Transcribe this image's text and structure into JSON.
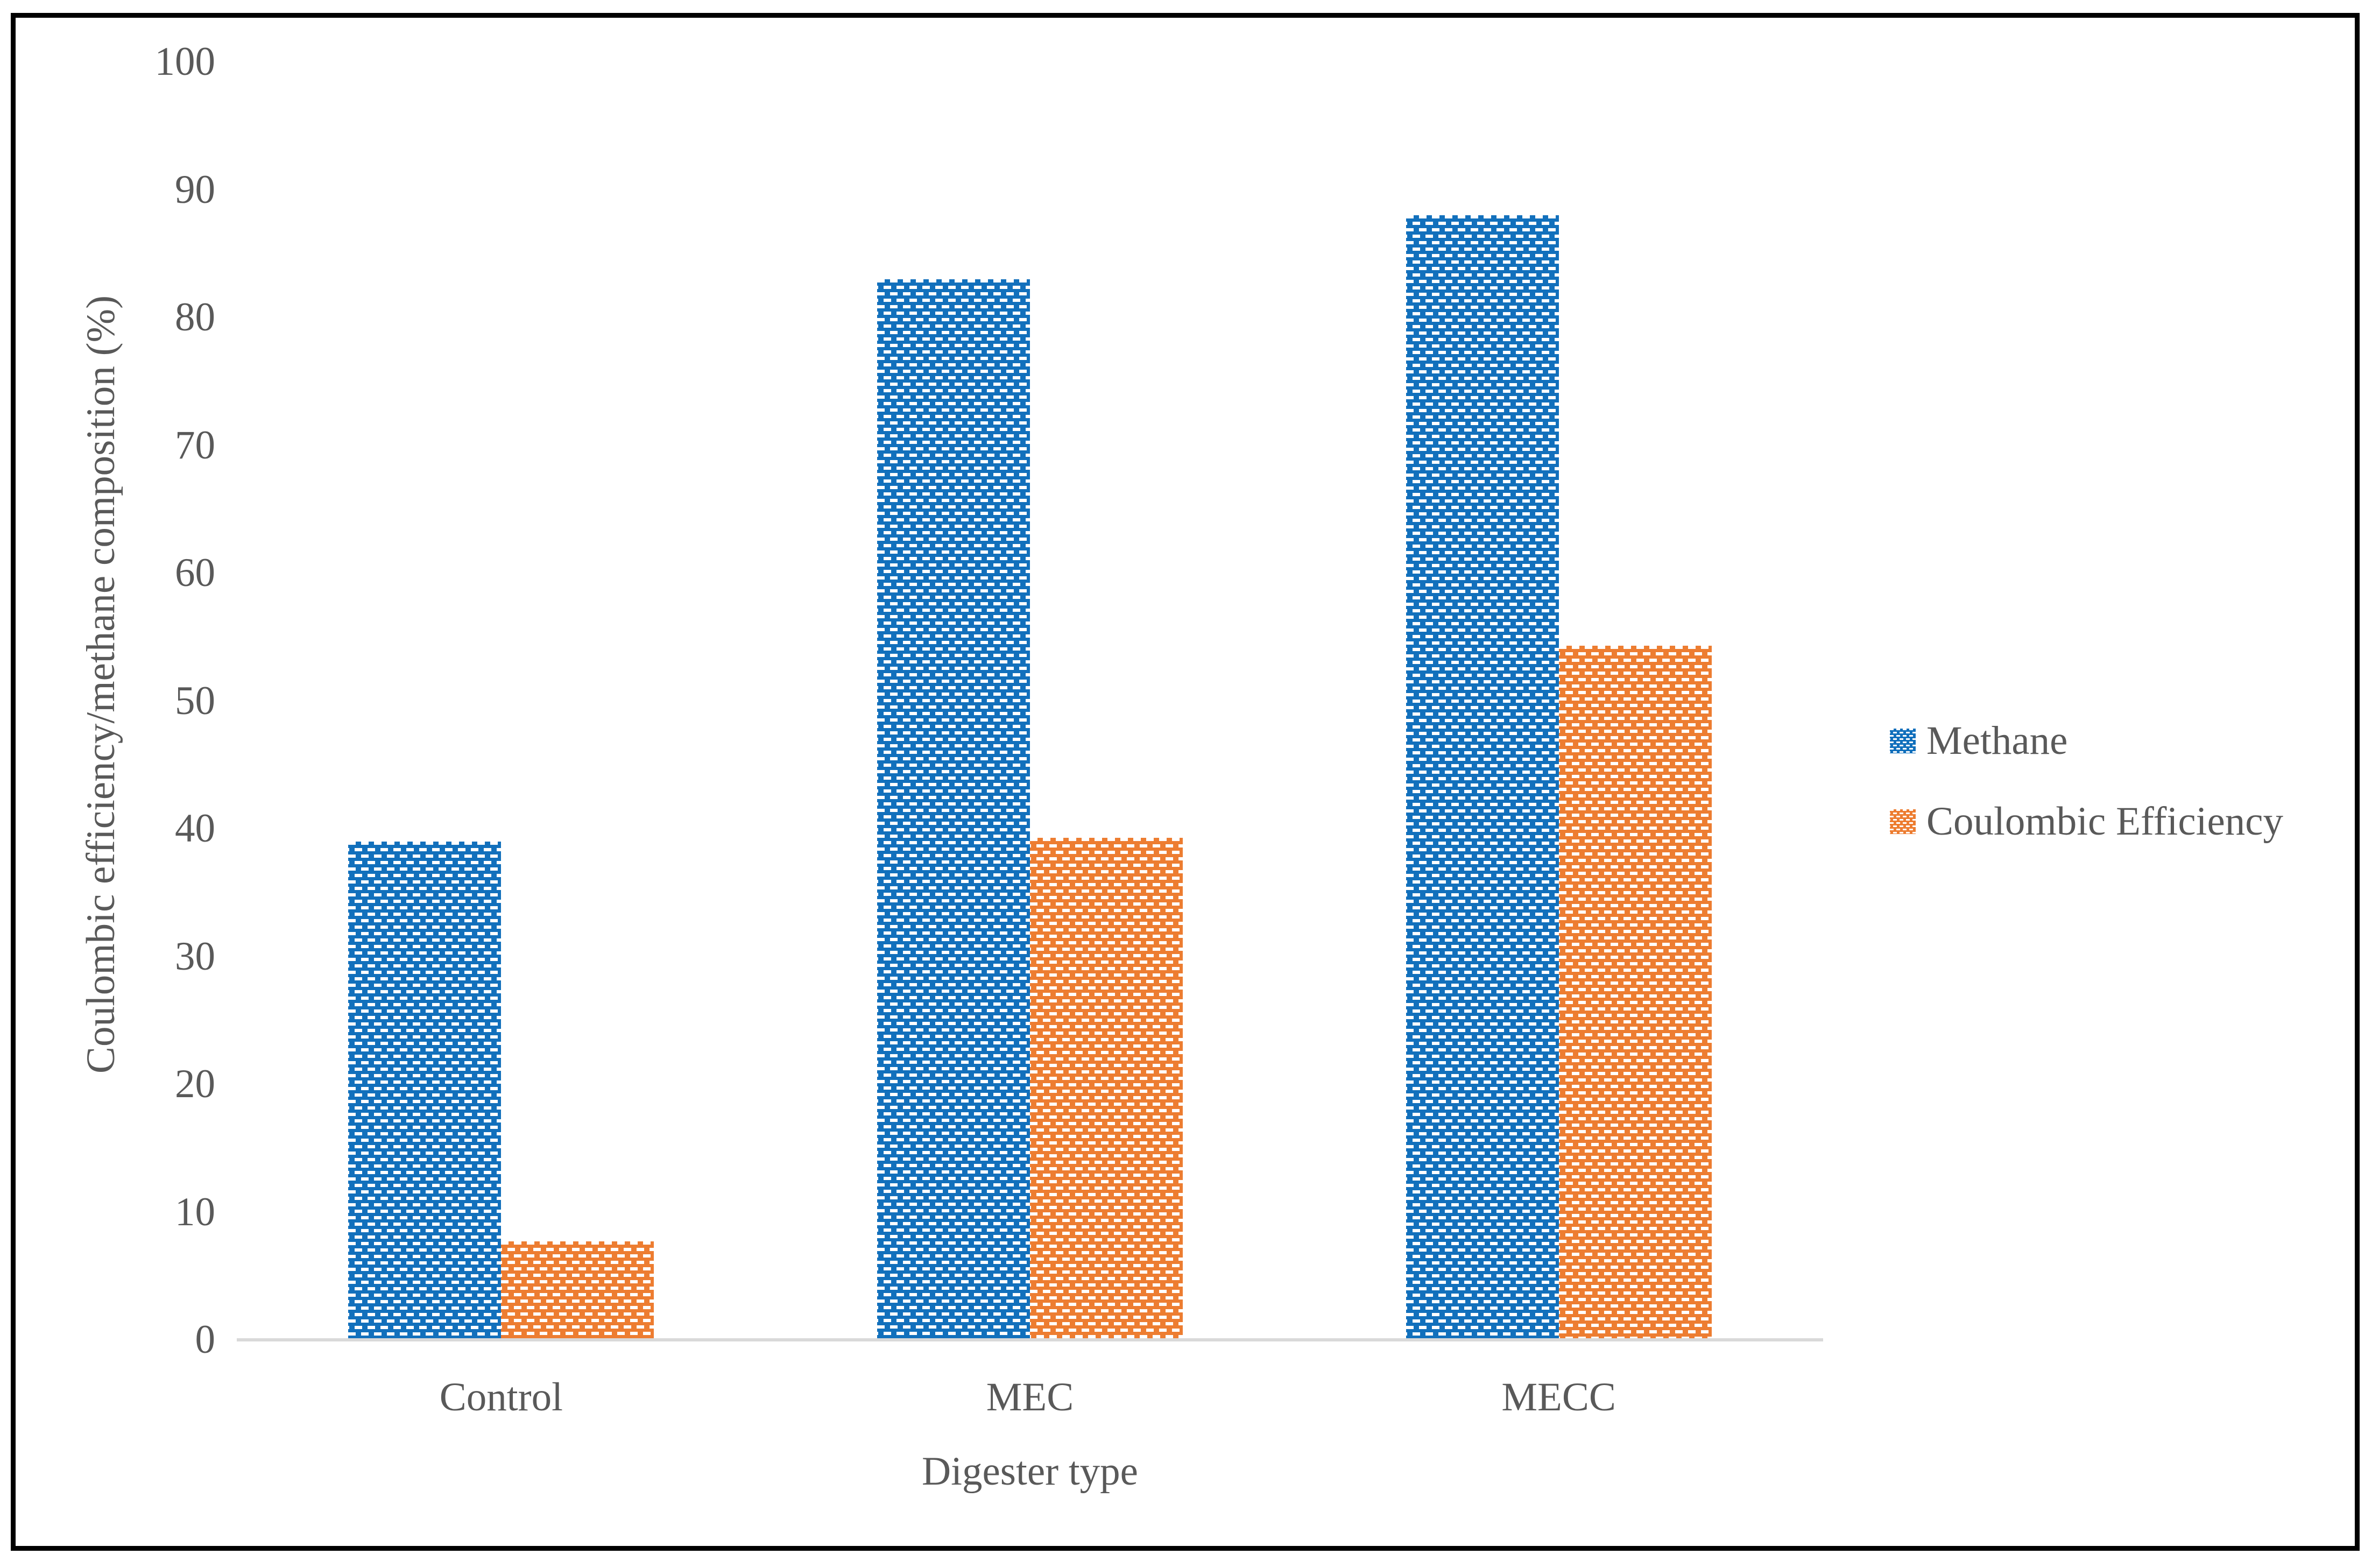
{
  "chart_data": {
    "type": "bar",
    "title": "",
    "categories": [
      "Control",
      "MEC",
      "MECC"
    ],
    "series": [
      {
        "name": "Methane",
        "color": "#1270BC",
        "pattern": "dashed-brick",
        "values": [
          39,
          83,
          88
        ]
      },
      {
        "name": "Coulombic Efficiency",
        "color": "#ED7D31",
        "pattern": "dashed-brick",
        "values": [
          7.7,
          39.3,
          54.3
        ]
      }
    ],
    "xlabel": "Digester type",
    "ylabel": "Coulombic efficiency/methane composition (%)",
    "ylim": [
      0,
      100
    ],
    "yticks": [
      0,
      10,
      20,
      30,
      40,
      50,
      60,
      70,
      80,
      90,
      100
    ],
    "grid": false,
    "legend_position": "right-middle"
  },
  "colors": {
    "methane_blue": "#1270BC",
    "efficiency_orange": "#ED7D31",
    "label_gray": "#595959",
    "axis_line_gray": "#D9D9D9",
    "frame_black": "#000000",
    "background": "#ffffff"
  }
}
